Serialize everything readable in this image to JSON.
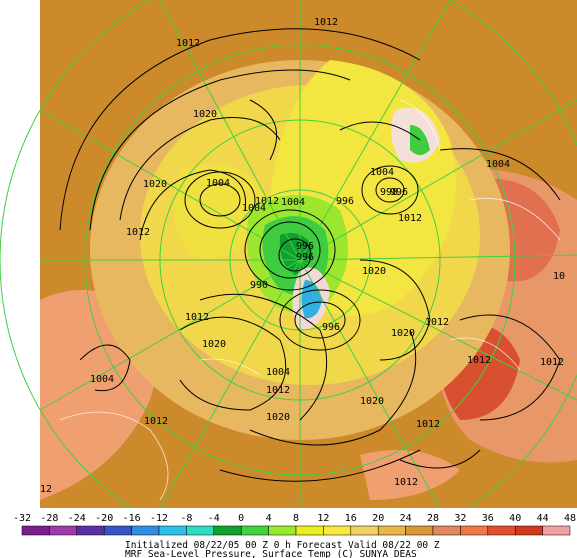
{
  "map": {
    "pressure_labels": [
      {
        "text": "1012"
      },
      {
        "text": "1012"
      },
      {
        "text": "1020"
      },
      {
        "text": "1020"
      },
      {
        "text": "1012"
      },
      {
        "text": "1004"
      },
      {
        "text": "1004"
      },
      {
        "text": "1012"
      },
      {
        "text": "1004"
      },
      {
        "text": "996"
      },
      {
        "text": "996"
      },
      {
        "text": "996"
      },
      {
        "text": "990"
      },
      {
        "text": "1012"
      },
      {
        "text": "1020"
      },
      {
        "text": "1004"
      },
      {
        "text": "1012"
      },
      {
        "text": "1020"
      },
      {
        "text": "1004"
      },
      {
        "text": "1012"
      },
      {
        "text": "998"
      },
      {
        "text": "996"
      },
      {
        "text": "1004"
      },
      {
        "text": "1012"
      },
      {
        "text": "1020"
      },
      {
        "text": "996"
      },
      {
        "text": "1020"
      },
      {
        "text": "1012"
      },
      {
        "text": "1012"
      },
      {
        "text": "1020"
      },
      {
        "text": "1012"
      },
      {
        "text": "1004"
      },
      {
        "text": "1012"
      },
      {
        "text": "1012"
      },
      {
        "text": "1012"
      },
      {
        "text": "12"
      },
      {
        "text": "10"
      }
    ]
  },
  "colorbar": {
    "ticks": [
      "-32",
      "-28",
      "-24",
      "-20",
      "-16",
      "-12",
      "-8",
      "-4",
      "0",
      "4",
      "8",
      "12",
      "16",
      "20",
      "24",
      "28",
      "32",
      "36",
      "40",
      "44",
      "48"
    ],
    "colors": [
      "#7a1e8c",
      "#a03aa8",
      "#5a2fa0",
      "#3a55c8",
      "#2f8fe0",
      "#2fc0e8",
      "#2fdcc0",
      "#10a030",
      "#40d040",
      "#98ea30",
      "#e8f020",
      "#f8e840",
      "#f0d060",
      "#e8b848",
      "#d89838",
      "#e08860",
      "#f07848",
      "#e05030",
      "#d03820",
      "#f0a0a0",
      "#f8d0d8"
    ],
    "caption_line1": "Initialized 08/22/05 00 Z  0 h Forecast Valid 08/22 00 Z",
    "caption_line2": "MRF Sea-Level Pressure, Surface Temp (C)     SUNYA DEAS"
  }
}
